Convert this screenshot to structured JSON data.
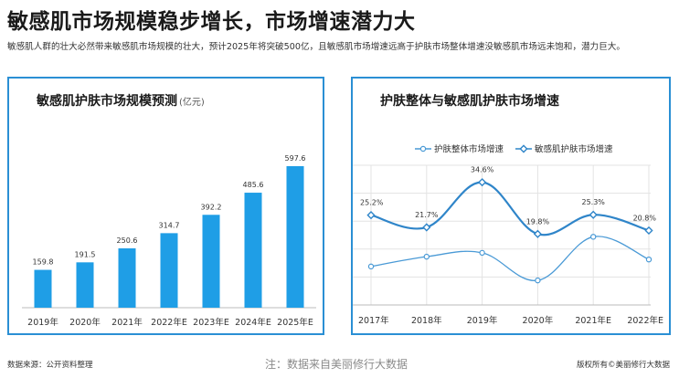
{
  "header": {
    "title": "敏感肌市场规模稳步增长，市场增速潜力大",
    "subtitle": "敏感肌人群的壮大必然带来敏感肌市场规模的壮大，预计2025年将突破500亿，且敏感肌市场增速远高于护肤市场整体增速没敏感肌市场远未饱和，潜力巨大。"
  },
  "colors": {
    "accent": "#2a8fd4",
    "bar": "#1f9ee6",
    "line_light": "#4a9ad6",
    "line_dark": "#2f85c9"
  },
  "chart_data": [
    {
      "type": "bar",
      "title": "敏感肌护肤市场规模预测",
      "title_unit": "(亿元)",
      "categories": [
        "2019年",
        "2020年",
        "2021年",
        "2022年E",
        "2023年E",
        "2024年E",
        "2025年E"
      ],
      "values": [
        159.8,
        191.5,
        250.6,
        314.7,
        392.2,
        485.6,
        597.6
      ],
      "ylim": [
        0,
        650
      ],
      "grid": false
    },
    {
      "type": "line",
      "title": "护肤整体与敏感肌护肤市场增速",
      "categories": [
        "2017年",
        "2018年",
        "2019年",
        "2020年",
        "2021年E",
        "2022年E"
      ],
      "series": [
        {
          "name": "护肤整体市场增速",
          "values": [
            10.5,
            13.3,
            14.4,
            6.5,
            19.0,
            12.5
          ],
          "labeled": false
        },
        {
          "name": "敏感肌护肤市场增速",
          "values": [
            25.2,
            21.7,
            34.6,
            19.8,
            25.3,
            20.8
          ],
          "labels": [
            "25.2%",
            "21.7%",
            "34.6%",
            "19.8%",
            "25.3%",
            "20.8%"
          ],
          "labeled": true
        }
      ],
      "ylim": [
        0,
        40
      ],
      "legend": "top-center",
      "grid": true
    }
  ],
  "footer": {
    "source": "数据来源：公开资料整理",
    "note": "注：数据来自美丽修行大数据",
    "copyright": "版权所有©美丽修行大数据"
  }
}
